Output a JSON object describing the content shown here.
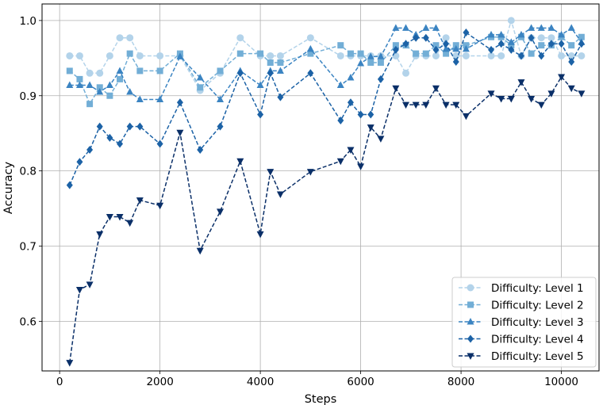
{
  "chart_data": {
    "type": "line",
    "xlabel": "Steps",
    "ylabel": "Accuracy",
    "xlim": [
      -350,
      10750
    ],
    "ylim": [
      0.534,
      1.022
    ],
    "xticks": [
      0,
      2000,
      4000,
      6000,
      8000,
      10000
    ],
    "yticks": [
      0.6,
      0.7,
      0.8,
      0.9,
      1.0
    ],
    "xtick_labels": [
      "0",
      "2000",
      "4000",
      "6000",
      "8000",
      "10000"
    ],
    "ytick_labels": [
      "0.6",
      "0.7",
      "0.8",
      "0.9",
      "1.0"
    ],
    "grid": true,
    "legend_position": "lower right",
    "x": [
      200,
      400,
      600,
      800,
      1000,
      1200,
      1400,
      1600,
      2000,
      2400,
      2800,
      3200,
      3600,
      4000,
      4200,
      4400,
      5000,
      5600,
      5800,
      6000,
      6200,
      6400,
      6700,
      6900,
      7100,
      7300,
      7500,
      7700,
      7900,
      8100,
      8600,
      8800,
      9000,
      9200,
      9400,
      9600,
      9800,
      10000,
      10200,
      10400
    ],
    "series": [
      {
        "name": "Difficulty: Level 1",
        "color": "#b3d3ea",
        "marker": "circle",
        "values": [
          0.953,
          0.953,
          0.93,
          0.93,
          0.953,
          0.977,
          0.977,
          0.953,
          0.953,
          0.953,
          0.907,
          0.93,
          0.977,
          0.953,
          0.953,
          0.953,
          0.977,
          0.953,
          0.953,
          0.953,
          0.953,
          0.953,
          0.953,
          0.93,
          0.953,
          0.953,
          0.953,
          0.977,
          0.953,
          0.953,
          0.953,
          0.953,
          1.0,
          0.953,
          0.977,
          0.977,
          0.977,
          0.953,
          0.953,
          0.953
        ]
      },
      {
        "name": "Difficulty: Level 2",
        "color": "#72aed6",
        "marker": "square",
        "values": [
          0.933,
          0.922,
          0.889,
          0.911,
          0.9,
          0.922,
          0.956,
          0.933,
          0.933,
          0.956,
          0.911,
          0.933,
          0.956,
          0.956,
          0.944,
          0.944,
          0.956,
          0.967,
          0.956,
          0.956,
          0.944,
          0.944,
          0.967,
          0.967,
          0.956,
          0.956,
          0.967,
          0.956,
          0.967,
          0.967,
          0.978,
          0.978,
          0.967,
          0.978,
          0.956,
          0.967,
          0.967,
          0.978,
          0.967,
          0.978
        ]
      },
      {
        "name": "Difficulty: Level 3",
        "color": "#3b84c2",
        "marker": "triangle-up",
        "values": [
          0.914,
          0.914,
          0.914,
          0.905,
          0.914,
          0.933,
          0.905,
          0.895,
          0.895,
          0.952,
          0.924,
          0.895,
          0.933,
          0.914,
          0.933,
          0.933,
          0.962,
          0.914,
          0.924,
          0.943,
          0.952,
          0.952,
          0.99,
          0.99,
          0.981,
          0.99,
          0.99,
          0.962,
          0.962,
          0.962,
          0.981,
          0.981,
          0.971,
          0.981,
          0.99,
          0.99,
          0.99,
          0.981,
          0.99,
          0.971
        ]
      },
      {
        "name": "Difficulty: Level 4",
        "color": "#1c62a6",
        "marker": "diamond",
        "values": [
          0.781,
          0.812,
          0.828,
          0.859,
          0.844,
          0.836,
          0.859,
          0.859,
          0.836,
          0.891,
          0.828,
          0.859,
          0.93,
          0.875,
          0.93,
          0.898,
          0.93,
          0.867,
          0.891,
          0.875,
          0.875,
          0.922,
          0.961,
          0.969,
          0.977,
          0.977,
          0.961,
          0.969,
          0.945,
          0.984,
          0.961,
          0.969,
          0.961,
          0.953,
          0.977,
          0.953,
          0.969,
          0.969,
          0.945,
          0.969
        ]
      },
      {
        "name": "Difficulty: Level 5",
        "color": "#0a2f68",
        "marker": "triangle-down",
        "values": [
          0.545,
          0.642,
          0.649,
          0.716,
          0.739,
          0.739,
          0.731,
          0.761,
          0.754,
          0.851,
          0.694,
          0.746,
          0.813,
          0.716,
          0.799,
          0.769,
          0.799,
          0.813,
          0.828,
          0.806,
          0.858,
          0.843,
          0.91,
          0.888,
          0.888,
          0.888,
          0.91,
          0.888,
          0.888,
          0.873,
          0.903,
          0.896,
          0.896,
          0.918,
          0.896,
          0.888,
          0.903,
          0.925,
          0.91,
          0.903
        ]
      }
    ]
  }
}
